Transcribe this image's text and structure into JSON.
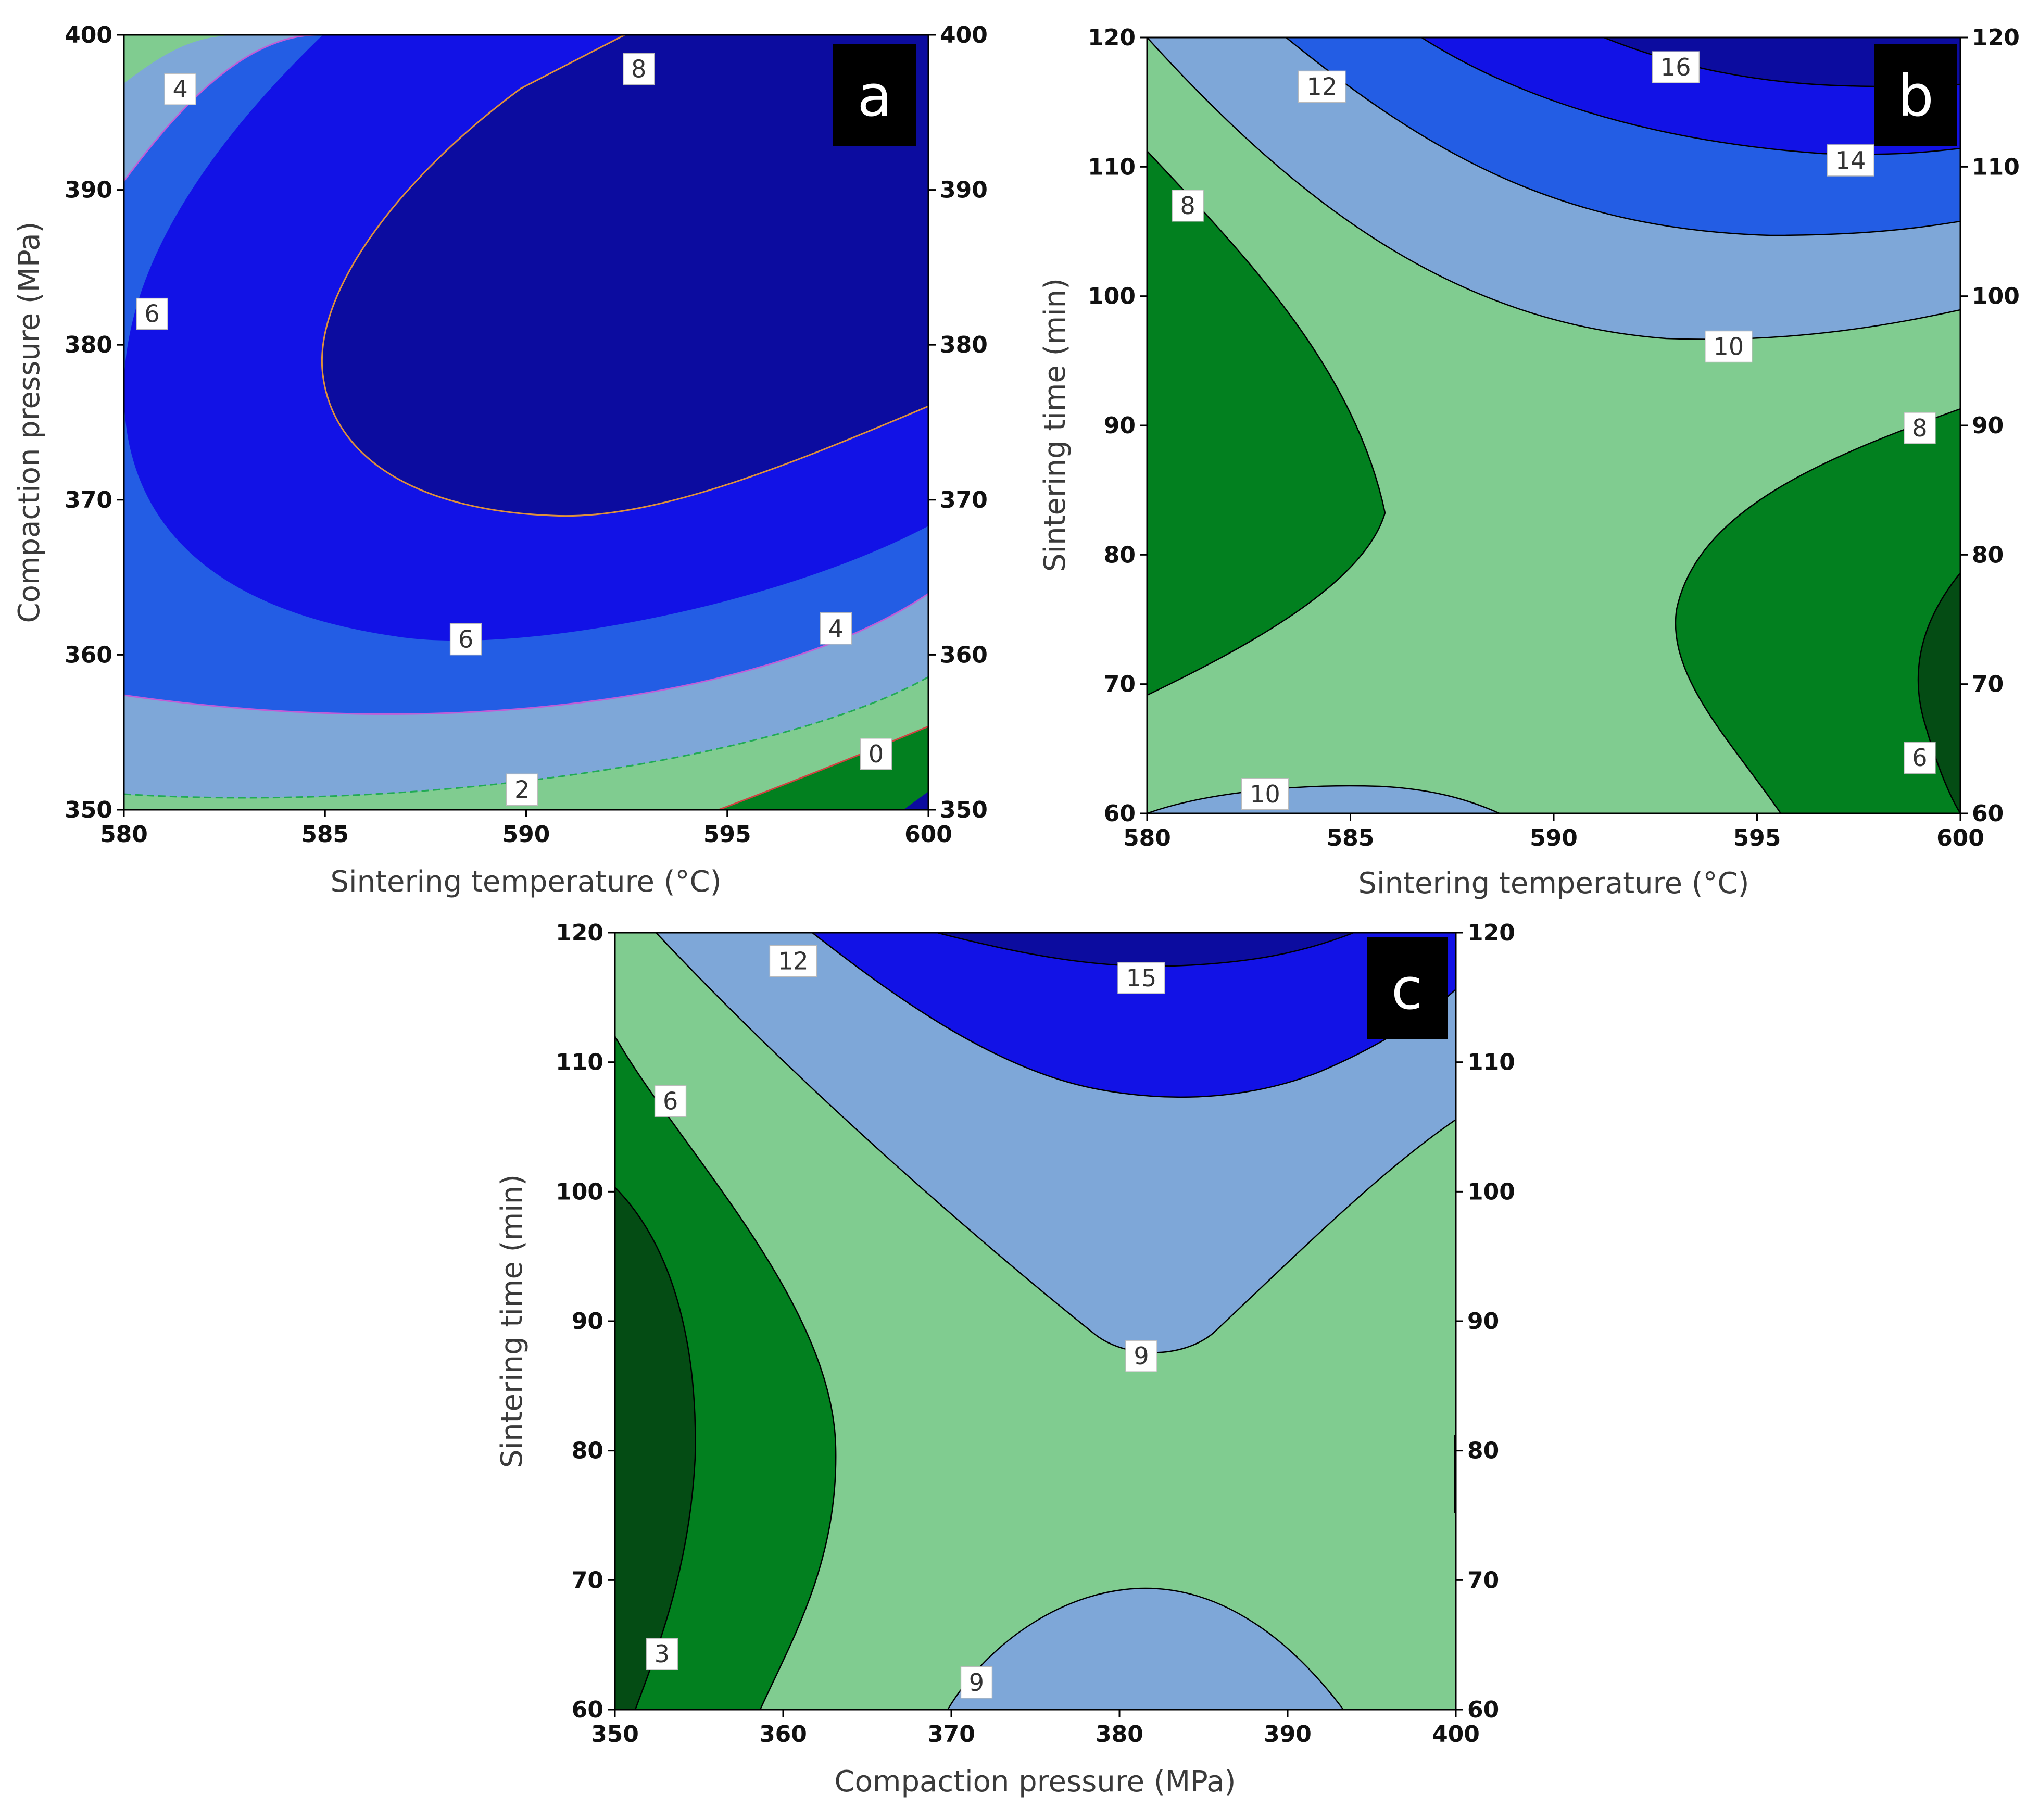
{
  "figure_title": "",
  "colors": {
    "darkest_green": "#044c14",
    "dark_green": "#02801f",
    "light_green": "#80cc90",
    "light_blue": "#7ea7d8",
    "mid_blue": "#235de4",
    "bright_blue": "#1212e6",
    "dark_navy": "#0c0c9f",
    "label_bg": "#000000",
    "label_text": "#ffffff"
  },
  "chart_data": [
    {
      "panel": "a",
      "type": "contour",
      "title": "",
      "xlabel": "Sintering temperature (°C)",
      "ylabel": "Compaction pressure (MPa)",
      "xlim": [
        580,
        600
      ],
      "ylim": [
        350,
        400
      ],
      "xticks": [
        "580",
        "585",
        "590",
        "595",
        "600"
      ],
      "yticks": [
        "350",
        "360",
        "370",
        "380",
        "390",
        "400"
      ],
      "right_yticks": [
        "350",
        "360",
        "370",
        "380",
        "390",
        "400"
      ],
      "grid": false,
      "contour_levels": [
        0,
        2,
        4,
        6,
        8
      ],
      "contour_labels": [
        {
          "text": "4",
          "x": 581.4,
          "y": 396.5
        },
        {
          "text": "8",
          "x": 592.8,
          "y": 397.8
        },
        {
          "text": "6",
          "x": 580.7,
          "y": 382.0
        },
        {
          "text": "6",
          "x": 588.5,
          "y": 361.0
        },
        {
          "text": "4",
          "x": 597.7,
          "y": 361.7
        },
        {
          "text": "2",
          "x": 589.9,
          "y": 351.3
        },
        {
          "text": "0",
          "x": 598.7,
          "y": 353.6
        }
      ]
    },
    {
      "panel": "b",
      "type": "contour",
      "title": "",
      "xlabel": "Sintering temperature (°C)",
      "ylabel": "Sintering time (min)",
      "xlim": [
        580,
        600
      ],
      "ylim": [
        60,
        120
      ],
      "xticks": [
        "580",
        "585",
        "590",
        "595",
        "600"
      ],
      "yticks": [
        "60",
        "70",
        "80",
        "90",
        "100",
        "110",
        "120"
      ],
      "right_yticks": [
        "60",
        "70",
        "80",
        "90",
        "100",
        "110",
        "120"
      ],
      "grid": false,
      "contour_levels": [
        6,
        8,
        10,
        12,
        14,
        16
      ],
      "contour_labels": [
        {
          "text": "12",
          "x": 584.3,
          "y": 116.2
        },
        {
          "text": "16",
          "x": 593.0,
          "y": 117.7
        },
        {
          "text": "14",
          "x": 597.3,
          "y": 110.5
        },
        {
          "text": "8",
          "x": 581.0,
          "y": 107.0
        },
        {
          "text": "10",
          "x": 594.3,
          "y": 96.1
        },
        {
          "text": "8",
          "x": 599.0,
          "y": 89.8
        },
        {
          "text": "6",
          "x": 599.0,
          "y": 64.3
        },
        {
          "text": "10",
          "x": 582.9,
          "y": 61.5
        }
      ]
    },
    {
      "panel": "c",
      "type": "contour",
      "title": "",
      "xlabel": "Compaction pressure (MPa)",
      "ylabel": "Sintering time (min)",
      "xlim": [
        350,
        400
      ],
      "ylim": [
        60,
        120
      ],
      "xticks": [
        "350",
        "360",
        "370",
        "380",
        "390",
        "400"
      ],
      "yticks": [
        "60",
        "70",
        "80",
        "90",
        "100",
        "110",
        "120"
      ],
      "right_yticks": [
        "60",
        "70",
        "80",
        "90",
        "100",
        "110",
        "120"
      ],
      "grid": false,
      "contour_levels": [
        3,
        6,
        9,
        12,
        15
      ],
      "contour_labels": [
        {
          "text": "12",
          "x": 360.6,
          "y": 117.8
        },
        {
          "text": "15",
          "x": 381.3,
          "y": 116.5
        },
        {
          "text": "6",
          "x": 353.3,
          "y": 107.0
        },
        {
          "text": "9",
          "x": 381.3,
          "y": 87.3
        },
        {
          "text": "3",
          "x": 352.8,
          "y": 64.3
        },
        {
          "text": "9",
          "x": 371.5,
          "y": 62.1
        }
      ]
    }
  ]
}
